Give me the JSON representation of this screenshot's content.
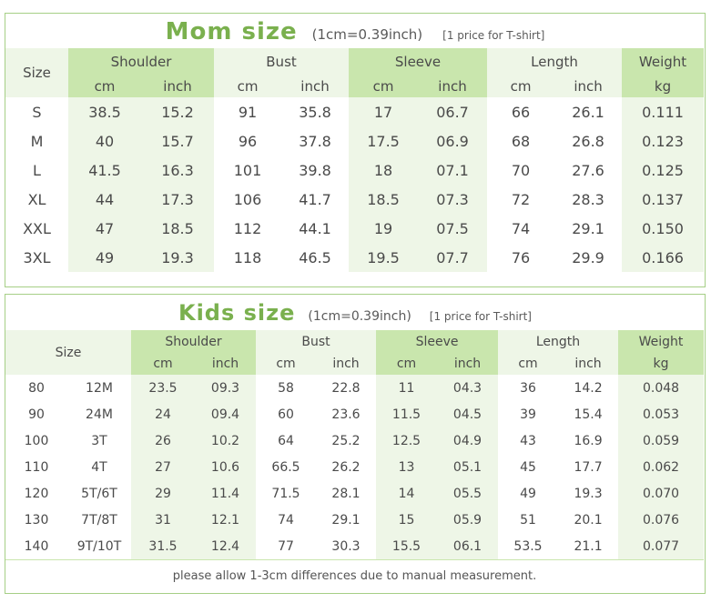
{
  "mom": {
    "title": "Mom size",
    "conversion": "(1cm=0.39inch)",
    "note": "[1 price for T-shirt]",
    "size_label": "Size",
    "groups": [
      "Shoulder",
      "Bust",
      "Sleeve",
      "Length",
      "Weight"
    ],
    "units": [
      "cm",
      "inch",
      "cm",
      "inch",
      "cm",
      "inch",
      "cm",
      "inch",
      "kg"
    ],
    "rows": [
      [
        "S",
        "38.5",
        "15.2",
        "91",
        "35.8",
        "17",
        "06.7",
        "66",
        "26.1",
        "0.111"
      ],
      [
        "M",
        "40",
        "15.7",
        "96",
        "37.8",
        "17.5",
        "06.9",
        "68",
        "26.8",
        "0.123"
      ],
      [
        "L",
        "41.5",
        "16.3",
        "101",
        "39.8",
        "18",
        "07.1",
        "70",
        "27.6",
        "0.125"
      ],
      [
        "XL",
        "44",
        "17.3",
        "106",
        "41.7",
        "18.5",
        "07.3",
        "72",
        "28.3",
        "0.137"
      ],
      [
        "XXL",
        "47",
        "18.5",
        "112",
        "44.1",
        "19",
        "07.5",
        "74",
        "29.1",
        "0.150"
      ],
      [
        "3XL",
        "49",
        "19.3",
        "118",
        "46.5",
        "19.5",
        "07.7",
        "76",
        "29.9",
        "0.166"
      ]
    ]
  },
  "kids": {
    "title": "Kids size",
    "conversion": "(1cm=0.39inch)",
    "note": "[1 price for T-shirt]",
    "size_label": "Size",
    "groups": [
      "Shoulder",
      "Bust",
      "Sleeve",
      "Length",
      "Weight"
    ],
    "units": [
      "cm",
      "inch",
      "cm",
      "inch",
      "cm",
      "inch",
      "cm",
      "inch",
      "kg"
    ],
    "rows": [
      [
        "80",
        "12M",
        "23.5",
        "09.3",
        "58",
        "22.8",
        "11",
        "04.3",
        "36",
        "14.2",
        "0.048"
      ],
      [
        "90",
        "24M",
        "24",
        "09.4",
        "60",
        "23.6",
        "11.5",
        "04.5",
        "39",
        "15.4",
        "0.053"
      ],
      [
        "100",
        "3T",
        "26",
        "10.2",
        "64",
        "25.2",
        "12.5",
        "04.9",
        "43",
        "16.9",
        "0.059"
      ],
      [
        "110",
        "4T",
        "27",
        "10.6",
        "66.5",
        "26.2",
        "13",
        "05.1",
        "45",
        "17.7",
        "0.062"
      ],
      [
        "120",
        "5T/6T",
        "29",
        "11.4",
        "71.5",
        "28.1",
        "14",
        "05.5",
        "49",
        "19.3",
        "0.070"
      ],
      [
        "130",
        "7T/8T",
        "31",
        "12.1",
        "74",
        "29.1",
        "15",
        "05.9",
        "51",
        "20.1",
        "0.076"
      ],
      [
        "140",
        "9T/10T",
        "31.5",
        "12.4",
        "77",
        "30.3",
        "15.5",
        "06.1",
        "53.5",
        "21.1",
        "0.077"
      ]
    ],
    "footer": "please allow 1-3cm differences due to manual measurement."
  },
  "colors": {
    "accent": "#7ab04e",
    "header_green": "#c9e6ad",
    "light_green": "#eef6e7",
    "border": "#a6cf86"
  }
}
